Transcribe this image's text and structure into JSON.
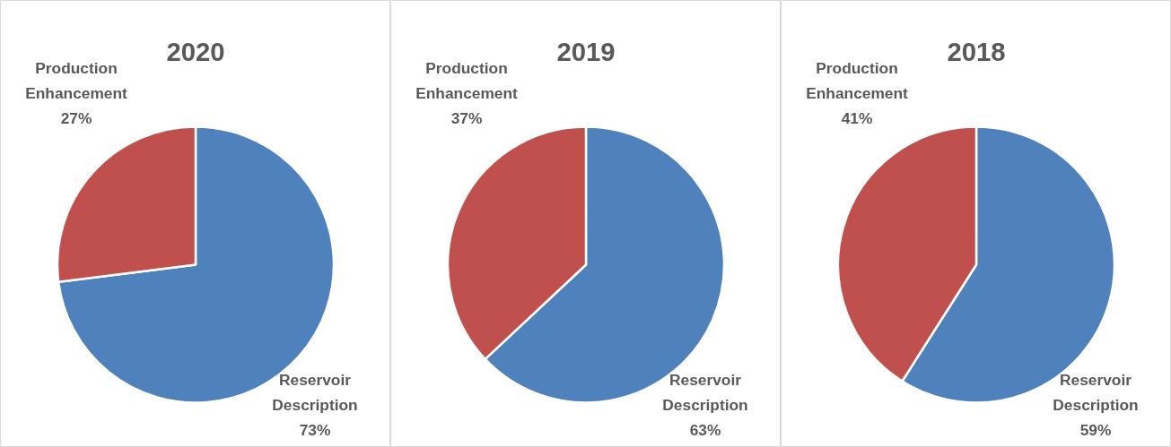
{
  "chart_data": [
    {
      "type": "pie",
      "title": "2020",
      "categories": [
        "Reservoir Description",
        "Production Enhancement"
      ],
      "values": [
        73,
        27
      ],
      "colors": [
        "#4f81bd",
        "#c0504d"
      ],
      "value_labels": [
        "73%",
        "27%"
      ]
    },
    {
      "type": "pie",
      "title": "2019",
      "categories": [
        "Reservoir Description",
        "Production Enhancement"
      ],
      "values": [
        63,
        37
      ],
      "colors": [
        "#4f81bd",
        "#c0504d"
      ],
      "value_labels": [
        "63%",
        "37%"
      ]
    },
    {
      "type": "pie",
      "title": "2018",
      "categories": [
        "Reservoir Description",
        "Production Enhancement"
      ],
      "values": [
        59,
        41
      ],
      "colors": [
        "#4f81bd",
        "#c0504d"
      ],
      "value_labels": [
        "59%",
        "41%"
      ]
    }
  ]
}
